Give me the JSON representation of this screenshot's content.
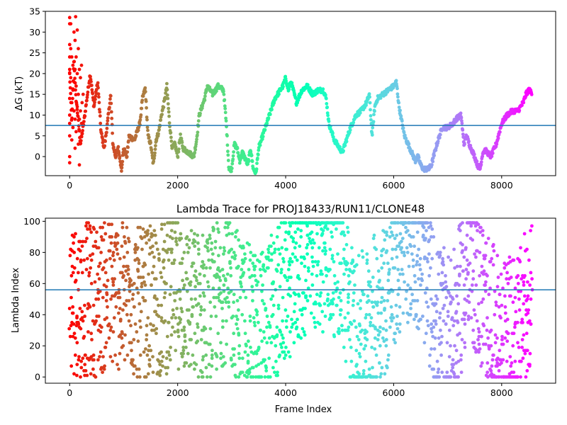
{
  "chart_data": [
    {
      "type": "scatter",
      "title": "",
      "xlabel": "",
      "ylabel": "ΔG (kT)",
      "xlim": [
        -450,
        9000
      ],
      "ylim": [
        -4.6,
        35
      ],
      "xticks": [
        0,
        2000,
        4000,
        6000,
        8000
      ],
      "yticks": [
        0,
        5,
        10,
        15,
        20,
        25,
        30,
        35
      ],
      "hline": 7.5,
      "hline_color": "#1f77b4",
      "colormap": "rainbow (time-colored: late frames violet, early frames red)",
      "x_max": 8560,
      "trace": [
        [
          0,
          20
        ],
        [
          40,
          8
        ],
        [
          80,
          24
        ],
        [
          110,
          15
        ],
        [
          150,
          10
        ],
        [
          200,
          3
        ],
        [
          260,
          8
        ],
        [
          320,
          14
        ],
        [
          380,
          20
        ],
        [
          450,
          12
        ],
        [
          520,
          18
        ],
        [
          580,
          6
        ],
        [
          640,
          2
        ],
        [
          700,
          8
        ],
        [
          760,
          15
        ],
        [
          800,
          3
        ],
        [
          850,
          0
        ],
        [
          900,
          2
        ],
        [
          960,
          -3
        ],
        [
          1000,
          2
        ],
        [
          1060,
          0
        ],
        [
          1100,
          5
        ],
        [
          1200,
          4
        ],
        [
          1300,
          8
        ],
        [
          1350,
          14
        ],
        [
          1400,
          16.5
        ],
        [
          1450,
          5
        ],
        [
          1500,
          3
        ],
        [
          1550,
          -2
        ],
        [
          1600,
          4
        ],
        [
          1650,
          6
        ],
        [
          1700,
          10
        ],
        [
          1750,
          13
        ],
        [
          1800,
          17
        ],
        [
          1850,
          8
        ],
        [
          1900,
          2
        ],
        [
          1950,
          3
        ],
        [
          2000,
          0
        ],
        [
          2050,
          5
        ],
        [
          2100,
          2
        ],
        [
          2200,
          1
        ],
        [
          2300,
          0
        ],
        [
          2350,
          4
        ],
        [
          2400,
          10
        ],
        [
          2500,
          14
        ],
        [
          2550,
          17
        ],
        [
          2650,
          15
        ],
        [
          2750,
          17
        ],
        [
          2850,
          16
        ],
        [
          2900,
          8
        ],
        [
          2950,
          -3
        ],
        [
          3000,
          -3
        ],
        [
          3050,
          3
        ],
        [
          3100,
          2
        ],
        [
          3150,
          -1
        ],
        [
          3200,
          1
        ],
        [
          3300,
          -2
        ],
        [
          3350,
          2
        ],
        [
          3400,
          -3
        ],
        [
          3450,
          -4
        ],
        [
          3500,
          2
        ],
        [
          3550,
          4
        ],
        [
          3600,
          6
        ],
        [
          3700,
          10
        ],
        [
          3800,
          14
        ],
        [
          3900,
          16
        ],
        [
          3950,
          17
        ],
        [
          4000,
          19
        ],
        [
          4050,
          16
        ],
        [
          4100,
          18
        ],
        [
          4200,
          13
        ],
        [
          4300,
          16
        ],
        [
          4400,
          17
        ],
        [
          4500,
          15
        ],
        [
          4600,
          16
        ],
        [
          4700,
          16
        ],
        [
          4750,
          14
        ],
        [
          4800,
          8
        ],
        [
          4900,
          4
        ],
        [
          5000,
          2
        ],
        [
          5050,
          1
        ],
        [
          5100,
          3
        ],
        [
          5200,
          7
        ],
        [
          5300,
          10
        ],
        [
          5400,
          11
        ],
        [
          5500,
          13
        ],
        [
          5550,
          15
        ],
        [
          5600,
          5
        ],
        [
          5650,
          12
        ],
        [
          5700,
          14
        ],
        [
          5800,
          15
        ],
        [
          5900,
          16
        ],
        [
          6000,
          17
        ],
        [
          6050,
          18
        ],
        [
          6100,
          12
        ],
        [
          6200,
          5
        ],
        [
          6300,
          2
        ],
        [
          6400,
          -1
        ],
        [
          6450,
          0
        ],
        [
          6500,
          -2
        ],
        [
          6550,
          -3
        ],
        [
          6650,
          -3
        ],
        [
          6700,
          -2
        ],
        [
          6800,
          3
        ],
        [
          6900,
          7
        ],
        [
          7000,
          7
        ],
        [
          7100,
          8
        ],
        [
          7150,
          9
        ],
        [
          7250,
          10
        ],
        [
          7300,
          3
        ],
        [
          7350,
          5
        ],
        [
          7400,
          3
        ],
        [
          7500,
          0
        ],
        [
          7550,
          -2
        ],
        [
          7600,
          -3
        ],
        [
          7650,
          1
        ],
        [
          7700,
          1.5
        ],
        [
          7800,
          0
        ],
        [
          7900,
          3
        ],
        [
          8000,
          8
        ],
        [
          8100,
          10
        ],
        [
          8200,
          11
        ],
        [
          8300,
          11
        ],
        [
          8400,
          13
        ],
        [
          8450,
          15
        ],
        [
          8500,
          16
        ],
        [
          8560,
          15.5
        ]
      ],
      "early_scatter": [
        [
          0,
          33.5
        ],
        [
          0,
          32
        ],
        [
          0,
          27
        ],
        [
          0,
          24
        ],
        [
          0,
          21
        ],
        [
          0,
          20
        ],
        [
          0,
          14
        ],
        [
          0,
          10
        ],
        [
          0,
          8
        ],
        [
          0,
          5
        ],
        [
          0,
          0
        ],
        [
          0,
          -1.5
        ],
        [
          20,
          32
        ],
        [
          20,
          26
        ],
        [
          20,
          19
        ],
        [
          40,
          24
        ],
        [
          40,
          13
        ],
        [
          40,
          4
        ],
        [
          60,
          22
        ],
        [
          60,
          16
        ],
        [
          60,
          7
        ],
        [
          80,
          30
        ],
        [
          80,
          18
        ],
        [
          80,
          11
        ],
        [
          100,
          28
        ],
        [
          100,
          21
        ],
        [
          100,
          9
        ],
        [
          100,
          2
        ],
        [
          110,
          33.7
        ],
        [
          120,
          24
        ],
        [
          120,
          17
        ],
        [
          120,
          6
        ],
        [
          140,
          30.5
        ],
        [
          140,
          20
        ],
        [
          140,
          12
        ],
        [
          160,
          26
        ],
        [
          160,
          15
        ],
        [
          160,
          3
        ],
        [
          180,
          21
        ],
        [
          180,
          9
        ],
        [
          180,
          -2
        ],
        [
          200,
          19
        ],
        [
          200,
          11
        ],
        [
          220,
          22
        ],
        [
          220,
          8
        ],
        [
          230,
          13
        ],
        [
          250,
          15
        ]
      ]
    },
    {
      "type": "scatter",
      "title": "Lambda Trace for PROJ18433/RUN11/CLONE48",
      "xlabel": "Frame Index",
      "ylabel": "Lambda Index",
      "xlim": [
        -450,
        9000
      ],
      "ylim": [
        -4,
        102
      ],
      "xticks": [
        0,
        2000,
        4000,
        6000,
        8000
      ],
      "yticks": [
        0,
        20,
        40,
        60,
        80,
        100
      ],
      "hline": 56,
      "hline_color": "#1f77b4",
      "colormap": "rainbow (time-colored: late frames violet, early frames red)",
      "x_max": 8560,
      "value_range": [
        0,
        99
      ],
      "band_centers": [
        [
          0,
          50
        ],
        [
          200,
          50
        ],
        [
          500,
          50
        ],
        [
          800,
          55
        ],
        [
          1100,
          50
        ],
        [
          1400,
          45
        ],
        [
          1700,
          50
        ],
        [
          2000,
          55
        ],
        [
          2300,
          45
        ],
        [
          2600,
          45
        ],
        [
          2900,
          60
        ],
        [
          3200,
          40
        ],
        [
          3500,
          30
        ],
        [
          3800,
          45
        ],
        [
          4200,
          70
        ],
        [
          4600,
          80
        ],
        [
          5000,
          75
        ],
        [
          5300,
          25
        ],
        [
          5600,
          40
        ],
        [
          5900,
          55
        ],
        [
          6200,
          85
        ],
        [
          6500,
          80
        ],
        [
          6800,
          35
        ],
        [
          7100,
          30
        ],
        [
          7400,
          75
        ],
        [
          7700,
          45
        ],
        [
          8000,
          25
        ],
        [
          8300,
          30
        ],
        [
          8560,
          55
        ]
      ]
    }
  ]
}
